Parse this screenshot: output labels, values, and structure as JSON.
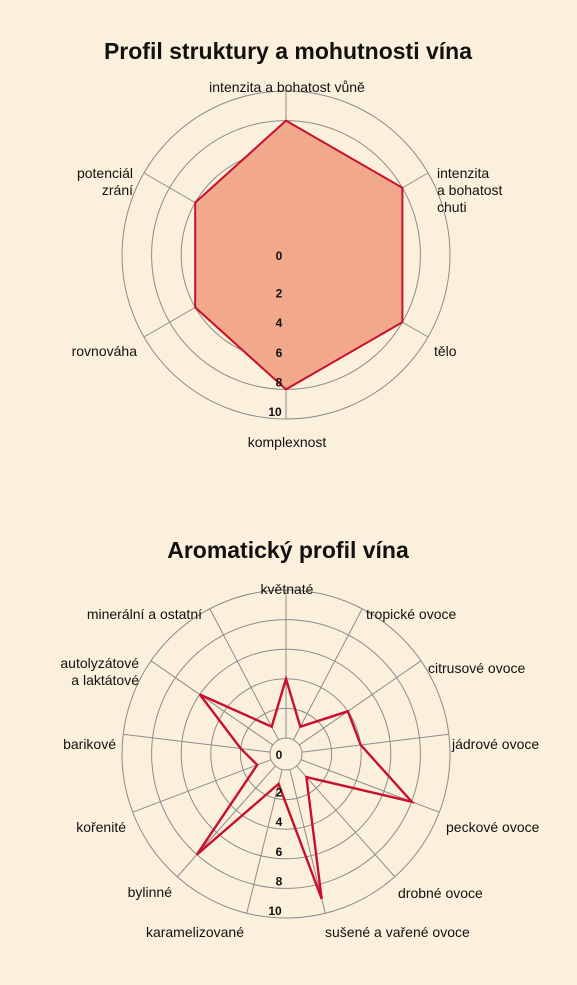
{
  "chart_data": [
    {
      "type": "radar",
      "title": "Profil struktury a mohutnosti vína",
      "rlim": [
        0,
        10
      ],
      "ticks": [
        "0",
        "2",
        "4",
        "6",
        "8",
        "10"
      ],
      "axes": [
        {
          "label": "intenzita a bohatost vůně"
        },
        {
          "label": "intenzita a bohatost chuti"
        },
        {
          "label": "tělo"
        },
        {
          "label": "komplexnost"
        },
        {
          "label": "rovnováha"
        },
        {
          "label": "potenciál zrání"
        }
      ],
      "values": [
        8,
        8,
        8,
        8,
        6,
        6
      ],
      "colors": {
        "fill": "#f2a88a",
        "line": "#c8102e"
      }
    },
    {
      "type": "radar",
      "title": "Aromatický profil vína",
      "rlim": [
        0,
        10
      ],
      "ticks": [
        "0",
        "2",
        "4",
        "6",
        "8",
        "10"
      ],
      "axes": [
        {
          "label": "květnaté"
        },
        {
          "label": "tropické ovoce"
        },
        {
          "label": "citrusové ovoce"
        },
        {
          "label": "jádrové ovoce"
        },
        {
          "label": "peckové ovoce"
        },
        {
          "label": "drobné ovoce"
        },
        {
          "label": "sušené a vařené ovoce"
        },
        {
          "label": "karamelizované"
        },
        {
          "label": "bylinné"
        },
        {
          "label": "kořenité"
        },
        {
          "label": "barikové"
        },
        {
          "label": "autolyzátové a laktátové"
        },
        {
          "label": "minerální a ostatní"
        }
      ],
      "values": [
        4,
        1,
        4,
        4,
        8,
        1,
        9,
        1,
        8,
        1,
        2,
        6,
        1
      ],
      "colors": {
        "fill": "none",
        "line": "#c8102e"
      }
    }
  ]
}
